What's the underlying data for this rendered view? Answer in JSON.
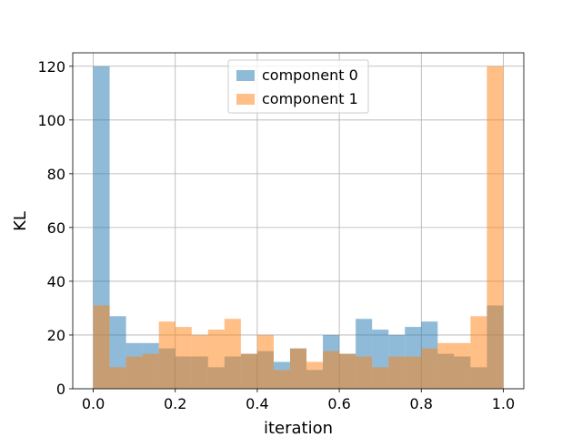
{
  "chart_data": {
    "type": "bar",
    "histogram": true,
    "xlabel": "iteration",
    "ylabel": "KL",
    "xlim": [
      -0.05,
      1.05
    ],
    "ylim": [
      0,
      125
    ],
    "xticks": [
      0.0,
      0.2,
      0.4,
      0.6,
      0.8,
      1.0
    ],
    "xtick_labels": [
      "0.0",
      "0.2",
      "0.4",
      "0.6",
      "0.8",
      "1.0"
    ],
    "yticks": [
      0,
      20,
      40,
      60,
      80,
      100,
      120
    ],
    "ytick_labels": [
      "0",
      "20",
      "40",
      "60",
      "80",
      "100",
      "120"
    ],
    "grid": true,
    "legend": "upper center",
    "bin_edges": [
      0.0,
      0.04,
      0.08,
      0.12,
      0.16,
      0.2,
      0.24,
      0.28,
      0.32,
      0.36,
      0.4,
      0.44,
      0.48,
      0.52,
      0.56,
      0.6,
      0.64,
      0.68,
      0.72,
      0.76,
      0.8,
      0.84,
      0.88,
      0.92,
      0.96,
      1.0
    ],
    "series": [
      {
        "name": "component 0",
        "color": "#1f77b4",
        "alpha": 0.5,
        "values": [
          120,
          27,
          17,
          17,
          15,
          12,
          12,
          8,
          12,
          13,
          14,
          10,
          15,
          7,
          20,
          13,
          26,
          22,
          20,
          23,
          25,
          13,
          12,
          8,
          31
        ]
      },
      {
        "name": "component 1",
        "color": "#ff7f0e",
        "alpha": 0.5,
        "values": [
          31,
          8,
          12,
          13,
          25,
          23,
          20,
          22,
          26,
          13,
          20,
          7,
          15,
          10,
          14,
          13,
          12,
          8,
          12,
          12,
          15,
          17,
          17,
          27,
          120
        ]
      }
    ]
  }
}
